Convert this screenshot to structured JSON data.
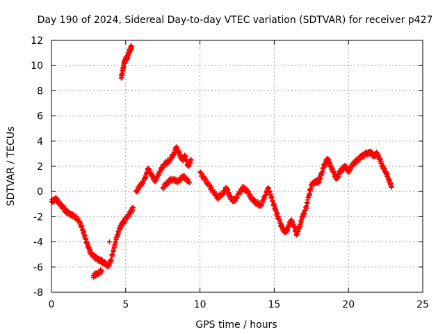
{
  "chart_data": {
    "type": "scatter",
    "title": "Day 190 of 2024, Sidereal Day-to-day VTEC variation (SDTVAR) for receiver p427",
    "xlabel": "GPS time / hours",
    "ylabel": "SDTVAR / TECUs",
    "xlim": [
      0,
      25
    ],
    "ylim": [
      -8,
      12
    ],
    "xticks": [
      0,
      5,
      10,
      15,
      20,
      25
    ],
    "yticks": [
      -8,
      -6,
      -4,
      -2,
      0,
      2,
      4,
      6,
      8,
      10,
      12
    ],
    "grid": true,
    "marker": "+",
    "color": "#ff0000",
    "series": [
      {
        "name": "SDTVAR",
        "points": [
          [
            0.0,
            -0.8
          ],
          [
            0.3,
            -0.6
          ],
          [
            0.5,
            -0.9
          ],
          [
            0.8,
            -1.3
          ],
          [
            1.0,
            -1.6
          ],
          [
            1.3,
            -1.8
          ],
          [
            1.6,
            -2.0
          ],
          [
            1.9,
            -2.4
          ],
          [
            2.1,
            -3.0
          ],
          [
            2.3,
            -3.8
          ],
          [
            2.5,
            -4.5
          ],
          [
            2.7,
            -5.0
          ],
          [
            3.0,
            -5.3
          ],
          [
            3.3,
            -5.5
          ],
          [
            3.5,
            -5.6
          ],
          [
            3.8,
            -5.9
          ],
          [
            4.0,
            -5.5
          ],
          [
            4.2,
            -4.5
          ],
          [
            4.4,
            -3.6
          ],
          [
            4.6,
            -2.9
          ],
          [
            4.8,
            -2.5
          ],
          [
            5.0,
            -2.2
          ],
          [
            5.3,
            -1.7
          ],
          [
            5.5,
            -1.3
          ],
          [
            2.8,
            -6.7
          ],
          [
            3.1,
            -6.5
          ],
          [
            3.4,
            -6.3
          ],
          [
            3.9,
            -4.0
          ],
          [
            4.7,
            9.0
          ],
          [
            4.8,
            9.6
          ],
          [
            4.9,
            10.2
          ],
          [
            5.0,
            10.5
          ],
          [
            5.1,
            10.6
          ],
          [
            5.2,
            11.0
          ],
          [
            5.3,
            11.3
          ],
          [
            5.4,
            11.5
          ],
          [
            5.7,
            0.0
          ],
          [
            6.0,
            0.5
          ],
          [
            6.3,
            1.0
          ],
          [
            6.5,
            1.8
          ],
          [
            6.8,
            1.2
          ],
          [
            7.0,
            0.8
          ],
          [
            7.3,
            1.6
          ],
          [
            7.6,
            2.2
          ],
          [
            7.9,
            2.4
          ],
          [
            8.2,
            2.9
          ],
          [
            8.4,
            3.5
          ],
          [
            8.6,
            3.0
          ],
          [
            8.8,
            2.5
          ],
          [
            9.0,
            2.8
          ],
          [
            9.2,
            2.0
          ],
          [
            9.4,
            2.5
          ],
          [
            7.5,
            0.3
          ],
          [
            7.8,
            0.7
          ],
          [
            8.1,
            1.0
          ],
          [
            8.5,
            0.8
          ],
          [
            8.9,
            1.2
          ],
          [
            9.3,
            0.7
          ],
          [
            10.0,
            1.5
          ],
          [
            10.3,
            1.0
          ],
          [
            10.6,
            0.5
          ],
          [
            10.9,
            0.0
          ],
          [
            11.2,
            -0.5
          ],
          [
            11.5,
            -0.2
          ],
          [
            11.8,
            0.3
          ],
          [
            12.0,
            -0.4
          ],
          [
            12.3,
            -0.8
          ],
          [
            12.6,
            -0.2
          ],
          [
            12.9,
            0.3
          ],
          [
            13.2,
            0.0
          ],
          [
            13.5,
            -0.6
          ],
          [
            13.8,
            -0.9
          ],
          [
            14.1,
            -1.1
          ],
          [
            14.4,
            -0.3
          ],
          [
            14.6,
            0.3
          ],
          [
            14.9,
            -0.8
          ],
          [
            15.1,
            -1.5
          ],
          [
            15.3,
            -2.2
          ],
          [
            15.5,
            -2.8
          ],
          [
            15.7,
            -3.2
          ],
          [
            15.9,
            -3.0
          ],
          [
            16.1,
            -2.3
          ],
          [
            16.3,
            -2.6
          ],
          [
            16.5,
            -3.4
          ],
          [
            16.7,
            -2.8
          ],
          [
            16.9,
            -2.0
          ],
          [
            17.1,
            -1.5
          ],
          [
            17.3,
            -0.5
          ],
          [
            17.5,
            0.5
          ],
          [
            17.8,
            0.8
          ],
          [
            18.0,
            0.8
          ],
          [
            18.2,
            1.5
          ],
          [
            18.4,
            2.2
          ],
          [
            18.6,
            2.6
          ],
          [
            18.8,
            2.0
          ],
          [
            19.0,
            1.5
          ],
          [
            19.2,
            1.0
          ],
          [
            19.4,
            1.5
          ],
          [
            19.6,
            1.8
          ],
          [
            19.8,
            2.0
          ],
          [
            20.0,
            1.6
          ],
          [
            20.3,
            2.2
          ],
          [
            20.6,
            2.5
          ],
          [
            20.9,
            2.8
          ],
          [
            21.2,
            3.0
          ],
          [
            21.5,
            3.1
          ],
          [
            21.7,
            2.8
          ],
          [
            21.9,
            3.0
          ],
          [
            22.1,
            2.6
          ],
          [
            22.3,
            2.0
          ],
          [
            22.5,
            1.6
          ],
          [
            22.7,
            1.0
          ],
          [
            22.9,
            0.4
          ]
        ]
      }
    ]
  }
}
